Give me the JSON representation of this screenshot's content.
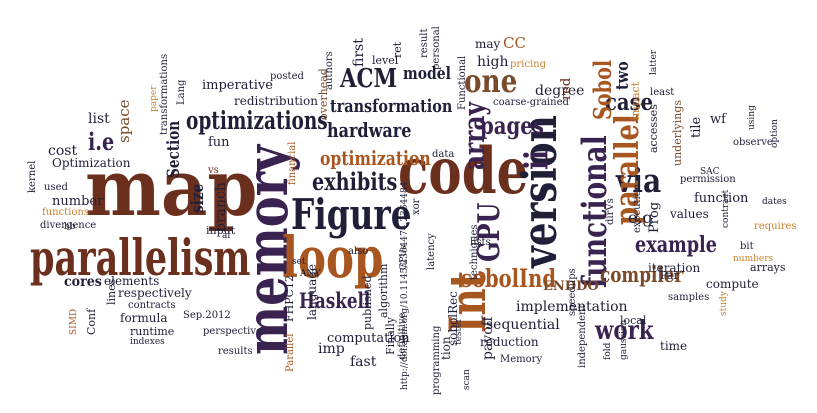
{
  "words": [
    "map",
    "memory",
    "code",
    "Int",
    "parallelism",
    "loop",
    "version",
    "Figure",
    "functional",
    "GPU",
    "ACM",
    "one",
    "optimizations",
    "array",
    "via",
    "parallel",
    "Haskell",
    "sobolInd",
    "pages",
    "ii",
    "case",
    "compiler",
    "exhibits",
    "optimization",
    "hardware",
    "model",
    "transformation",
    "work",
    "example",
    "Sobol",
    "i.e",
    "cost",
    "list",
    "space",
    "Section",
    "size",
    "branch",
    "fun",
    "imperative",
    "redistribution",
    "posted",
    "first",
    "level",
    "ret",
    "result",
    "personal",
    "may",
    "CC",
    "high",
    "Functional",
    "pricing",
    "degree",
    "red",
    "two",
    "impact",
    "latter",
    "least",
    "coarse-grained",
    "data",
    "tile",
    "wf",
    "observe",
    "underlyings",
    "permission",
    "function",
    "values",
    "e.g",
    "Prog",
    "accesses",
    "execution",
    "cores",
    "number",
    "Optimization",
    "kernel",
    "used",
    "functions",
    "divergence",
    "bb",
    "vs",
    "input",
    "elements",
    "respectively",
    "contracts",
    "Sep.2012",
    "formula",
    "lines",
    "runtime",
    "SIMD",
    "Conf",
    "indexes",
    "results",
    "perspective",
    "FHPC12",
    "language",
    "imp",
    "Parallel",
    "computation",
    "fast",
    "published",
    "set",
    "algorithm",
    "http://doi.acm.org/10.1145/2364474.2364484",
    "sobolRec",
    "programming",
    "sequential",
    "reduction",
    "implementation",
    "local",
    "iteration",
    "ENDDO",
    "samples",
    "compute",
    "bit",
    "arrays",
    "numbers",
    "study",
    "gaussian",
    "fold",
    "time",
    "independent",
    "payoff",
    "Memory",
    "scan",
    "Finally",
    "definitive",
    "tion",
    "speedups",
    "techniques",
    "latency",
    "xor",
    "also",
    "financial",
    "overhead",
    "authors",
    "paper",
    "transformations",
    "Lang",
    "SAC",
    "al",
    "ANY",
    "dates",
    "requires",
    "option",
    "using",
    "contract",
    "Par",
    "dirVs",
    "lists",
    "tester",
    "GPUs"
  ]
}
